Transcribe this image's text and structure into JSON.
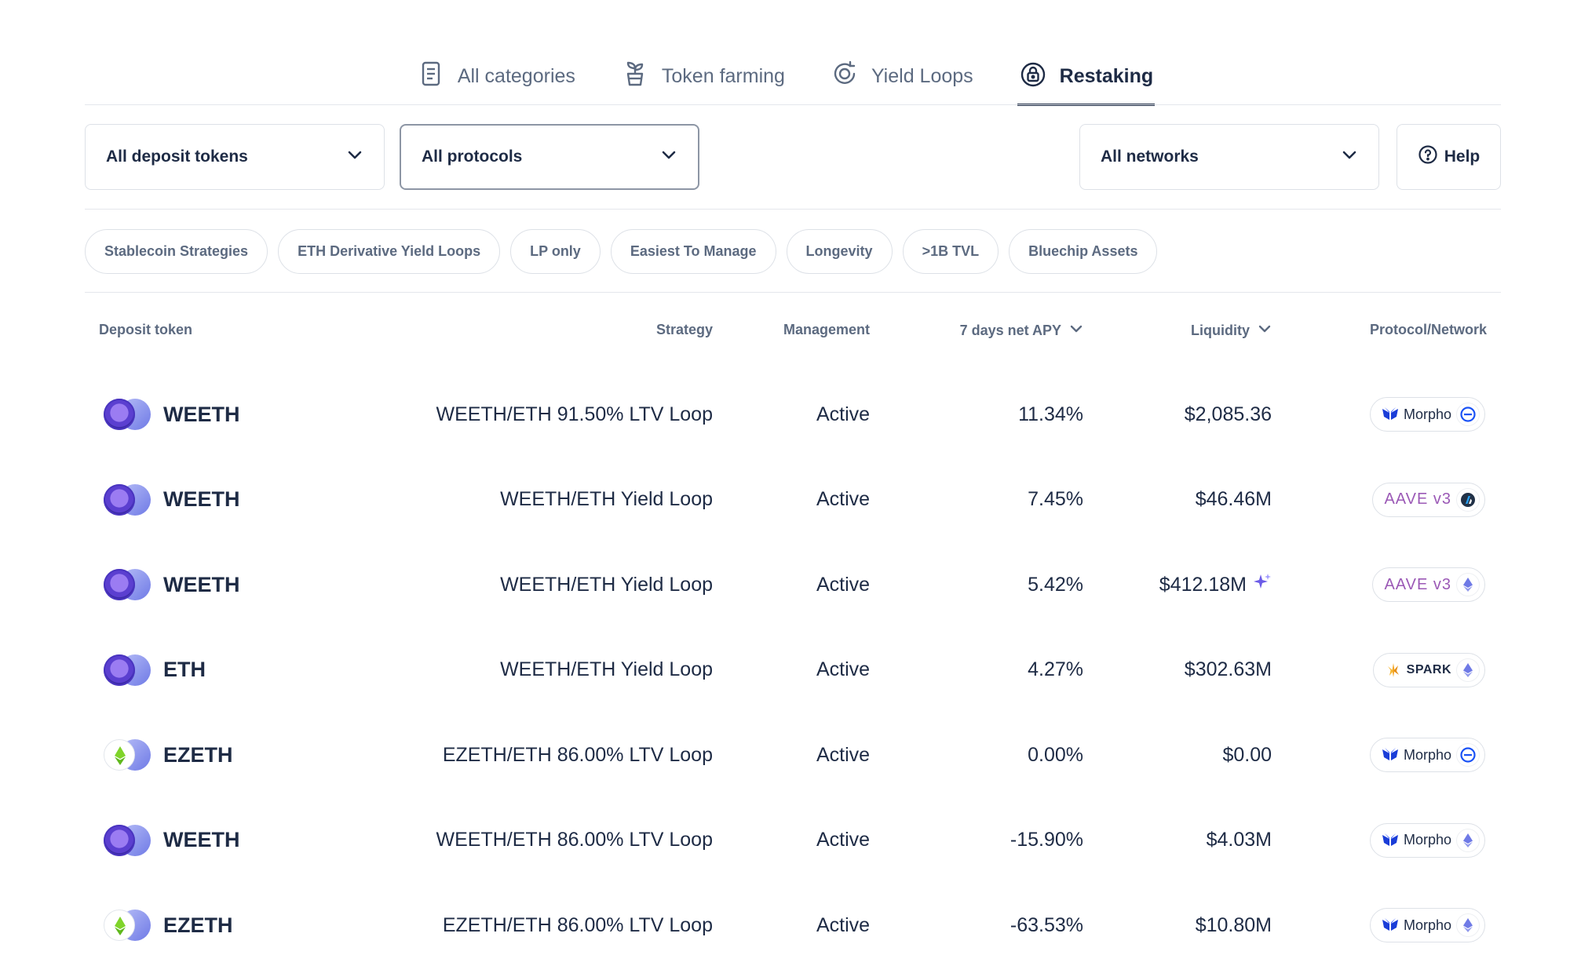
{
  "tabs": [
    {
      "label": "All categories",
      "icon": "document-list-icon",
      "active": false
    },
    {
      "label": "Token farming",
      "icon": "sprout-plant-icon",
      "active": false
    },
    {
      "label": "Yield Loops",
      "icon": "loop-circle-icon",
      "active": false
    },
    {
      "label": "Restaking",
      "icon": "lock-circle-icon",
      "active": true
    }
  ],
  "filters": {
    "deposit_tokens": "All deposit tokens",
    "protocols": "All protocols",
    "networks": "All networks",
    "help": "Help"
  },
  "chips": [
    "Stablecoin Strategies",
    "ETH Derivative Yield Loops",
    "LP only",
    "Easiest To Manage",
    "Longevity",
    ">1B TVL",
    "Bluechip Assets"
  ],
  "table": {
    "headers": {
      "deposit_token": "Deposit token",
      "strategy": "Strategy",
      "management": "Management",
      "apy": "7 days net APY",
      "liquidity": "Liquidity",
      "protocol_network": "Protocol/Network"
    },
    "rows": [
      {
        "token": "WEETH",
        "token_icon": "weeth",
        "strategy": "WEETH/ETH 91.50% LTV Loop",
        "management": "Active",
        "apy": "11.34%",
        "liquidity": "$2,085.36",
        "sparkle": false,
        "protocol": "Morpho",
        "protocol_style": "morpho",
        "network": "base"
      },
      {
        "token": "WEETH",
        "token_icon": "weeth",
        "strategy": "WEETH/ETH Yield Loop",
        "management": "Active",
        "apy": "7.45%",
        "liquidity": "$46.46M",
        "sparkle": false,
        "protocol": "AAVE v3",
        "protocol_style": "aave",
        "network": "arbitrum"
      },
      {
        "token": "WEETH",
        "token_icon": "weeth",
        "strategy": "WEETH/ETH Yield Loop",
        "management": "Active",
        "apy": "5.42%",
        "liquidity": "$412.18M",
        "sparkle": true,
        "protocol": "AAVE v3",
        "protocol_style": "aave",
        "network": "ethereum"
      },
      {
        "token": "ETH",
        "token_icon": "weeth",
        "strategy": "WEETH/ETH Yield Loop",
        "management": "Active",
        "apy": "4.27%",
        "liquidity": "$302.63M",
        "sparkle": false,
        "protocol": "SPARK",
        "protocol_style": "spark",
        "network": "ethereum"
      },
      {
        "token": "EZETH",
        "token_icon": "ezeth",
        "strategy": "EZETH/ETH 86.00% LTV Loop",
        "management": "Active",
        "apy": "0.00%",
        "liquidity": "$0.00",
        "sparkle": false,
        "protocol": "Morpho",
        "protocol_style": "morpho",
        "network": "base"
      },
      {
        "token": "WEETH",
        "token_icon": "weeth",
        "strategy": "WEETH/ETH 86.00% LTV Loop",
        "management": "Active",
        "apy": "-15.90%",
        "liquidity": "$4.03M",
        "sparkle": false,
        "protocol": "Morpho",
        "protocol_style": "morpho",
        "network": "ethereum"
      },
      {
        "token": "EZETH",
        "token_icon": "ezeth",
        "strategy": "EZETH/ETH 86.00% LTV Loop",
        "management": "Active",
        "apy": "-63.53%",
        "liquidity": "$10.80M",
        "sparkle": false,
        "protocol": "Morpho",
        "protocol_style": "morpho",
        "network": "ethereum"
      }
    ]
  },
  "colors": {
    "text_primary": "#1e2b45",
    "text_secondary": "#5c6a80",
    "border": "#dde1e7",
    "base_blue": "#1a52f5",
    "eth_purple": "#6f7ae6",
    "weeth_purple": "#7a4be0",
    "ezeth_green": "#7fd42a"
  }
}
